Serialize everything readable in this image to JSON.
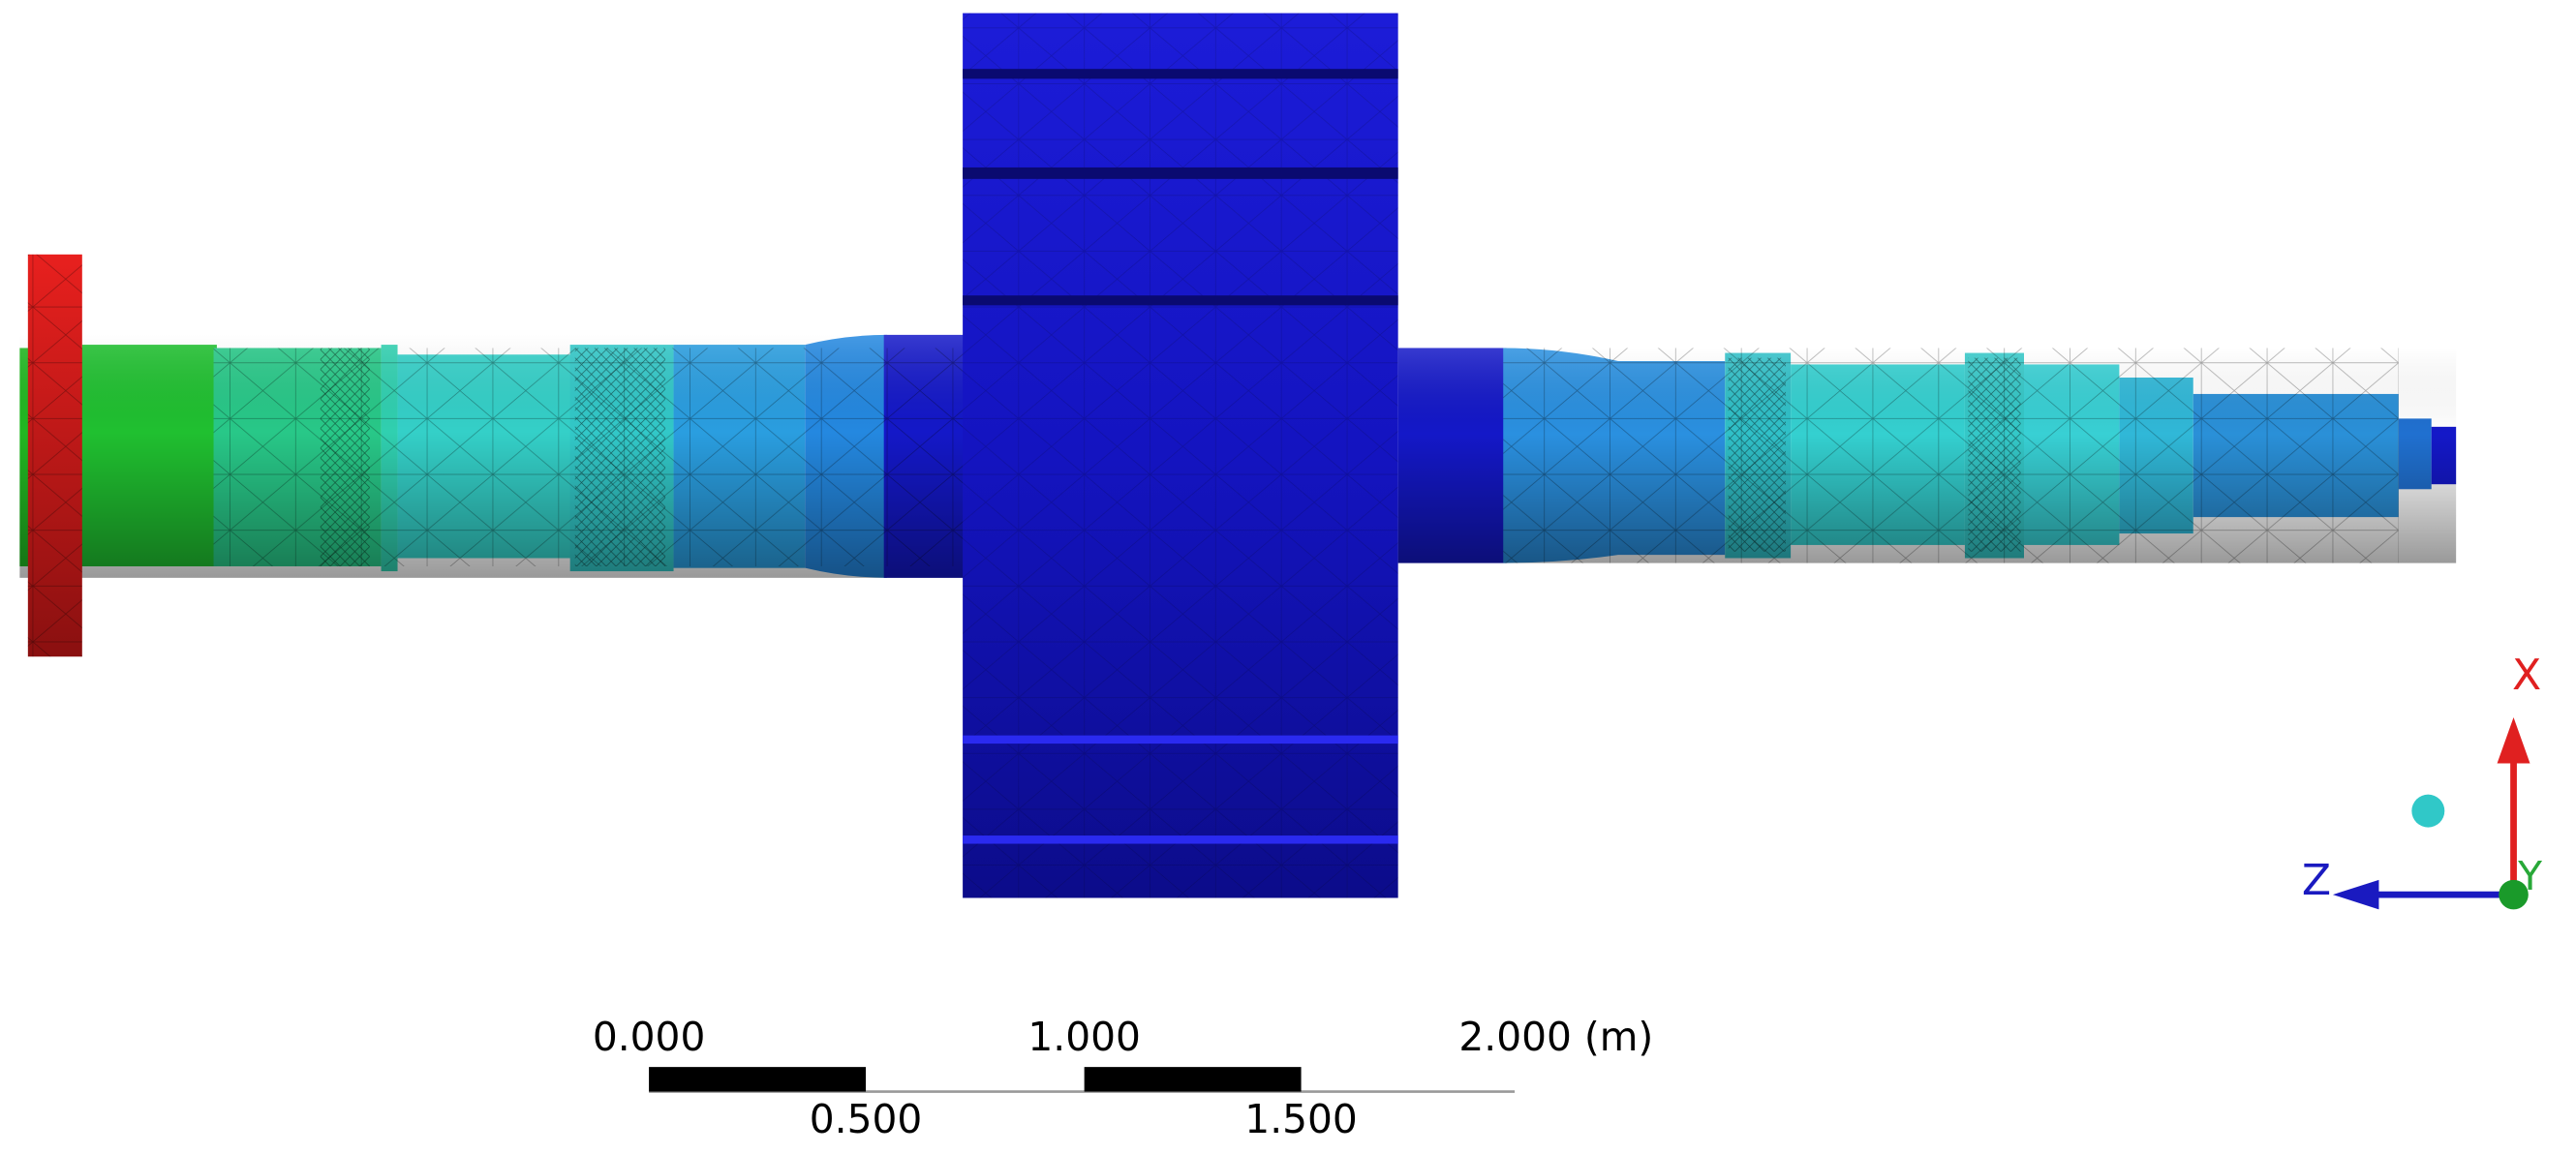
{
  "scale_bar": {
    "labels_top": [
      "0.000",
      "1.000",
      "2.000 (m)"
    ],
    "labels_bottom": [
      "0.500",
      "1.500"
    ]
  },
  "triad": {
    "x": "X",
    "y": "Y",
    "z": "Z"
  }
}
